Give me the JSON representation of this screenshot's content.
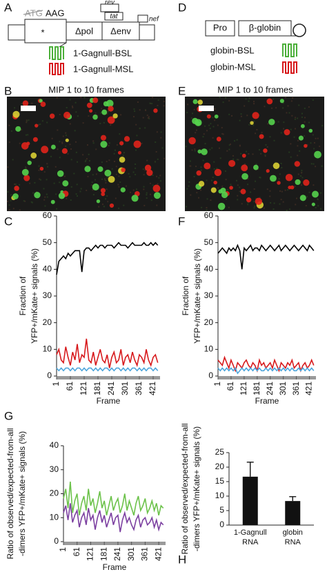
{
  "figure": {
    "letters": [
      "A",
      "B",
      "C",
      "D",
      "E",
      "F",
      "G",
      "H"
    ],
    "diagram_a": {
      "start_codon": "ATG",
      "mutant_codon": "AAG",
      "star": "*",
      "pol": "Δpol",
      "env": "Δenv",
      "rev": "rev",
      "tat": "tat",
      "nef": "nef",
      "bsl": "1-Gagnull-BSL",
      "msl": "1-Gagnull-MSL"
    },
    "diagram_d": {
      "promoter": "Pro",
      "gene": "β-globin",
      "bsl": "globin-BSL",
      "msl": "globin-MSL"
    },
    "image_title": "MIP 1 to 10 frames"
  },
  "chart_data": [
    {
      "type": "line",
      "ylabel": [
        "Fraction of",
        "YFP+/mKate+ signals (%)"
      ],
      "xlabel": "Frame",
      "x": [
        1,
        11,
        21,
        31,
        41,
        51,
        61,
        71,
        81,
        91,
        101,
        111,
        121,
        131,
        141,
        151,
        161,
        171,
        181,
        191,
        201,
        211,
        221,
        231,
        241,
        251,
        261,
        271,
        281,
        291,
        301,
        311,
        321,
        331,
        341,
        351,
        361,
        371,
        381,
        391,
        401,
        411,
        421,
        431,
        441
      ],
      "xlim": [
        1,
        451
      ],
      "xticks": [
        1,
        61,
        121,
        181,
        241,
        301,
        361,
        421
      ],
      "ylim": [
        0,
        60
      ],
      "yticks": [
        0,
        10,
        20,
        30,
        40,
        50,
        60
      ],
      "series": [
        {
          "color": "#000000",
          "values": [
            38,
            43,
            44,
            45,
            44,
            46,
            45,
            46,
            47,
            47,
            47,
            39,
            47,
            48,
            48,
            47,
            48,
            49,
            48,
            49,
            49,
            48,
            49,
            49,
            49,
            48,
            49,
            50,
            49,
            49,
            49,
            48,
            49,
            50,
            49,
            49,
            49,
            49,
            50,
            49,
            49,
            50,
            49,
            50,
            49
          ]
        },
        {
          "color": "#d7191c",
          "values": [
            8,
            10,
            6,
            5,
            11,
            7,
            4,
            9,
            6,
            12,
            5,
            8,
            7,
            14,
            6,
            5,
            9,
            4,
            7,
            10,
            6,
            5,
            8,
            3,
            7,
            9,
            5,
            6,
            10,
            4,
            7,
            8,
            5,
            9,
            6,
            4,
            8,
            7,
            5,
            10,
            6,
            4,
            7,
            8,
            5
          ]
        },
        {
          "color": "#4ea6dc",
          "values": [
            3,
            2,
            3,
            2,
            3,
            3,
            2,
            3,
            2,
            3,
            3,
            2,
            3,
            2,
            3,
            3,
            2,
            3,
            2,
            3,
            2,
            3,
            3,
            2,
            3,
            2,
            3,
            3,
            2,
            3,
            2,
            3,
            2,
            3,
            3,
            2,
            3,
            2,
            3,
            2,
            3,
            3,
            2,
            3,
            2
          ]
        }
      ]
    },
    {
      "type": "line",
      "ylabel": [
        "Fraction of",
        "YFP+/mKate+ signals (%)"
      ],
      "xlabel": "Frame",
      "x": [
        1,
        11,
        21,
        31,
        41,
        51,
        61,
        71,
        81,
        91,
        101,
        111,
        121,
        131,
        141,
        151,
        161,
        171,
        181,
        191,
        201,
        211,
        221,
        231,
        241,
        251,
        261,
        271,
        281,
        291,
        301,
        311,
        321,
        331,
        341,
        351,
        361,
        371,
        381,
        391,
        401,
        411,
        421,
        431,
        441
      ],
      "xlim": [
        1,
        451
      ],
      "xticks": [
        1,
        61,
        121,
        181,
        241,
        301,
        361,
        421
      ],
      "ylim": [
        0,
        60
      ],
      "yticks": [
        0,
        10,
        20,
        30,
        40,
        50,
        60
      ],
      "series": [
        {
          "color": "#000000",
          "values": [
            46,
            47,
            48,
            47,
            46,
            48,
            47,
            48,
            47,
            49,
            47,
            40,
            48,
            47,
            48,
            49,
            47,
            48,
            48,
            47,
            49,
            48,
            47,
            48,
            49,
            48,
            47,
            48,
            49,
            47,
            48,
            49,
            48,
            47,
            48,
            49,
            48,
            47,
            48,
            49,
            48,
            47,
            49,
            48,
            47
          ]
        },
        {
          "color": "#d7191c",
          "values": [
            6,
            5,
            4,
            7,
            5,
            3,
            6,
            4,
            2,
            5,
            4,
            3,
            5,
            6,
            4,
            3,
            5,
            4,
            2,
            6,
            4,
            5,
            3,
            4,
            5,
            3,
            6,
            4,
            2,
            5,
            4,
            3,
            5,
            4,
            6,
            3,
            4,
            5,
            2,
            4,
            5,
            3,
            4,
            6,
            4
          ]
        },
        {
          "color": "#4ea6dc",
          "values": [
            3,
            2,
            3,
            2,
            3,
            2,
            3,
            2,
            3,
            1,
            2,
            3,
            2,
            3,
            2,
            3,
            2,
            3,
            2,
            3,
            2,
            2,
            3,
            2,
            3,
            2,
            3,
            2,
            3,
            2,
            3,
            2,
            3,
            2,
            3,
            2,
            2,
            3,
            2,
            3,
            2,
            3,
            2,
            3,
            2
          ]
        }
      ]
    },
    {
      "type": "line",
      "ylabel": [
        "Ratio of observed/expected-from-all",
        "-dimers YFP+/mKate+ signals (%)"
      ],
      "xlabel": "Frame",
      "x": [
        1,
        11,
        21,
        31,
        41,
        51,
        61,
        71,
        81,
        91,
        101,
        111,
        121,
        131,
        141,
        151,
        161,
        171,
        181,
        191,
        201,
        211,
        221,
        231,
        241,
        251,
        261,
        271,
        281,
        291,
        301,
        311,
        321,
        331,
        341,
        351,
        361,
        371,
        381,
        391,
        401,
        411,
        421,
        431,
        441
      ],
      "xlim": [
        1,
        451
      ],
      "xticks": [
        1,
        61,
        121,
        181,
        241,
        301,
        361,
        421
      ],
      "ylim": [
        0,
        40
      ],
      "yticks": [
        0,
        10,
        20,
        30,
        40
      ],
      "series": [
        {
          "color": "#6cc24a",
          "values": [
            18,
            22,
            14,
            25,
            12,
            17,
            20,
            11,
            16,
            19,
            13,
            22,
            15,
            18,
            12,
            16,
            21,
            14,
            17,
            11,
            15,
            19,
            13,
            16,
            18,
            12,
            15,
            20,
            13,
            17,
            14,
            11,
            16,
            19,
            13,
            15,
            18,
            12,
            14,
            17,
            13,
            16,
            11,
            15,
            14
          ]
        },
        {
          "color": "#7b3fa0",
          "values": [
            12,
            15,
            9,
            16,
            8,
            11,
            13,
            6,
            10,
            12,
            7,
            14,
            9,
            11,
            5,
            10,
            13,
            8,
            11,
            6,
            9,
            12,
            7,
            10,
            11,
            4,
            9,
            12,
            8,
            10,
            7,
            5,
            9,
            11,
            6,
            9,
            10,
            7,
            8,
            10,
            6,
            9,
            5,
            8,
            7
          ]
        }
      ]
    },
    {
      "type": "bar",
      "ylabel": [
        "Ratio of observed/expected-from-all",
        "-dimers YFP+/mKate+ signals (%)"
      ],
      "categories": [
        "1-Gagnull RNA",
        "globin RNA"
      ],
      "values": [
        16.7,
        8.3
      ],
      "errors": [
        5,
        1.5
      ],
      "color": "#111111",
      "ylim": [
        0,
        25
      ],
      "yticks": [
        0,
        5,
        10,
        15,
        20,
        25
      ]
    }
  ]
}
